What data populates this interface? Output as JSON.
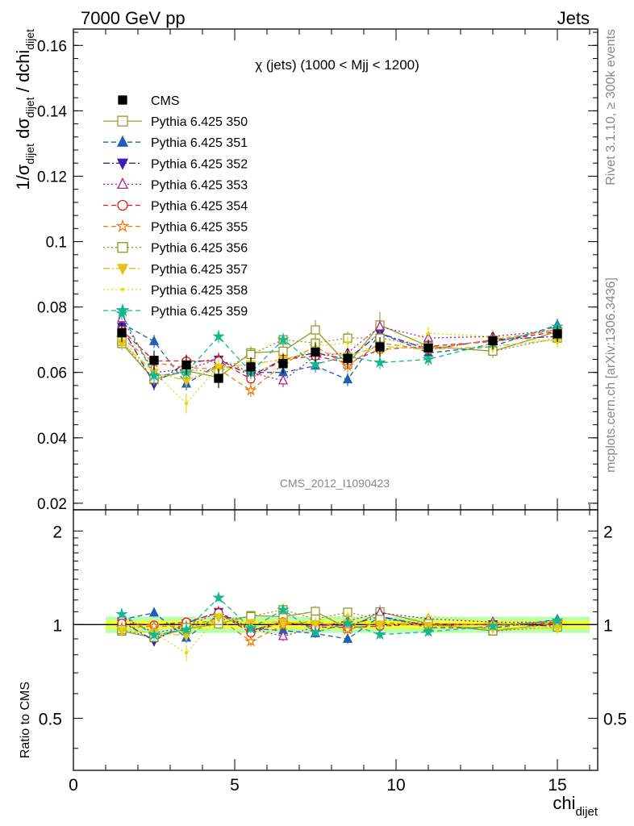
{
  "header": {
    "left": "7000 GeV pp",
    "right": "Jets"
  },
  "side_text": {
    "rivet": "Rivet 3.1.10, ≥ 300k events",
    "mcplots": "mcplots.cern.ch [arXiv:1306.3436]"
  },
  "watermark": "CMS_2012_I1090423",
  "colors": {
    "CMS": "#000000",
    "350": "#999933",
    "351": "#1f5fb4",
    "352": "#3b1fb0",
    "353": "#b0208c",
    "354": "#e41a1c",
    "355": "#f07a10",
    "356": "#8c9a1a",
    "357": "#e6c21a",
    "358": "#d8e000",
    "359": "#14b88c",
    "band_inner": "#f2ff30",
    "band_outer": "#b8ffb0"
  },
  "chart_data": [
    {
      "type": "scatter",
      "title": "χ (jets) (1000 < Mjj < 1200)",
      "ylabel": "1/σ_dijet dσ_dijet / dchi_dijet",
      "xlim": [
        0,
        16.25
      ],
      "ylim": [
        0.018,
        0.165
      ],
      "yticks": [
        0.02,
        0.04,
        0.06,
        0.08,
        0.1,
        0.12,
        0.14,
        0.16
      ],
      "ytick_labels": [
        "0.02",
        "0.04",
        "0.06",
        "0.08",
        "0.1",
        "0.12",
        "0.14",
        "0.16"
      ],
      "x": [
        1.5,
        2.5,
        3.5,
        4.5,
        5.5,
        6.5,
        7.5,
        8.5,
        9.5,
        11,
        13,
        15
      ],
      "series": [
        {
          "name": "CMS",
          "key": "CMS",
          "marker": "filled-square",
          "line": "none",
          "values": [
            0.0722,
            0.0637,
            0.0623,
            0.0582,
            0.0617,
            0.0627,
            0.0662,
            0.0643,
            0.0678,
            0.0675,
            0.0697,
            0.0718
          ],
          "err": [
            0.003,
            0.003,
            0.003,
            0.003,
            0.003,
            0.003,
            0.003,
            0.003,
            0.003,
            0.0025,
            0.0025,
            0.0025
          ]
        },
        {
          "name": "Pythia 6.425 350",
          "key": "350",
          "marker": "open-square",
          "line": "solid",
          "values": [
            0.0688,
            0.0578,
            0.0605,
            0.0585,
            0.066,
            0.0665,
            0.073,
            0.0625,
            0.0745,
            0.068,
            0.0665,
            0.0725
          ],
          "err": [
            0.002,
            0.002,
            0.002,
            0.002,
            0.002,
            0.002,
            0.003,
            0.002,
            0.004,
            0.002,
            0.002,
            0.002
          ]
        },
        {
          "name": "Pythia 6.425 351",
          "key": "351",
          "marker": "filled-triangle-up",
          "line": "dashed",
          "values": [
            0.075,
            0.0695,
            0.0565,
            0.0625,
            0.06,
            0.06,
            0.062,
            0.0578,
            0.072,
            0.066,
            0.068,
            0.0745
          ],
          "err": [
            0.002,
            0.002,
            0.002,
            0.002,
            0.002,
            0.002,
            0.002,
            0.002,
            0.002,
            0.002,
            0.002,
            0.002
          ]
        },
        {
          "name": "Pythia 6.425 352",
          "key": "352",
          "marker": "filled-triangle-down",
          "line": "dashdot",
          "values": [
            0.074,
            0.0565,
            0.063,
            0.064,
            0.059,
            0.064,
            0.066,
            0.064,
            0.072,
            0.067,
            0.07,
            0.071
          ],
          "err": [
            0.002,
            0.002,
            0.002,
            0.002,
            0.002,
            0.002,
            0.002,
            0.002,
            0.002,
            0.002,
            0.002,
            0.002
          ]
        },
        {
          "name": "Pythia 6.425 353",
          "key": "353",
          "marker": "open-triangle-up",
          "line": "dotted",
          "values": [
            0.0765,
            0.06,
            0.061,
            0.064,
            0.06,
            0.0575,
            0.065,
            0.066,
            0.074,
            0.0705,
            0.071,
            0.073
          ],
          "err": [
            0.002,
            0.002,
            0.002,
            0.002,
            0.002,
            0.002,
            0.002,
            0.002,
            0.002,
            0.002,
            0.002,
            0.002
          ]
        },
        {
          "name": "Pythia 6.425 354",
          "key": "354",
          "marker": "open-circle",
          "line": "dashed",
          "values": [
            0.073,
            0.0635,
            0.0635,
            0.0635,
            0.058,
            0.064,
            0.065,
            0.063,
            0.067,
            0.068,
            0.0695,
            0.0725
          ],
          "err": [
            0.002,
            0.002,
            0.002,
            0.002,
            0.002,
            0.002,
            0.002,
            0.002,
            0.002,
            0.002,
            0.002,
            0.002
          ]
        },
        {
          "name": "Pythia 6.425 355",
          "key": "355",
          "marker": "open-star",
          "line": "dashed",
          "values": [
            0.0705,
            0.063,
            0.0615,
            0.061,
            0.0545,
            0.0625,
            0.068,
            0.062,
            0.069,
            0.067,
            0.07,
            0.073
          ],
          "err": [
            0.002,
            0.002,
            0.002,
            0.002,
            0.002,
            0.002,
            0.002,
            0.002,
            0.002,
            0.002,
            0.002,
            0.002
          ]
        },
        {
          "name": "Pythia 6.425 356",
          "key": "356",
          "marker": "open-square",
          "line": "dotted",
          "values": [
            0.0695,
            0.058,
            0.061,
            0.06,
            0.0655,
            0.07,
            0.069,
            0.0705,
            0.0705,
            0.068,
            0.0665,
            0.0705
          ],
          "err": [
            0.002,
            0.002,
            0.002,
            0.002,
            0.002,
            0.002,
            0.002,
            0.002,
            0.002,
            0.002,
            0.002,
            0.002
          ]
        },
        {
          "name": "Pythia 6.425 357",
          "key": "357",
          "marker": "filled-triangle-down",
          "line": "dashdot",
          "values": [
            0.069,
            0.06,
            0.0575,
            0.0615,
            0.0625,
            0.064,
            0.0665,
            0.065,
            0.068,
            0.067,
            0.068,
            0.07
          ],
          "err": [
            0.002,
            0.002,
            0.002,
            0.002,
            0.002,
            0.002,
            0.002,
            0.002,
            0.002,
            0.002,
            0.002,
            0.002
          ]
        },
        {
          "name": "Pythia 6.425 358",
          "key": "358",
          "marker": "dot",
          "line": "dotted",
          "values": [
            0.07,
            0.06,
            0.0505,
            0.062,
            0.06,
            0.063,
            0.068,
            0.069,
            0.066,
            0.072,
            0.071,
            0.0695
          ],
          "err": [
            0.002,
            0.002,
            0.003,
            0.002,
            0.002,
            0.002,
            0.002,
            0.002,
            0.002,
            0.002,
            0.002,
            0.002
          ]
        },
        {
          "name": "Pythia 6.425 359",
          "key": "359",
          "marker": "filled-star",
          "line": "dashed",
          "values": [
            0.078,
            0.059,
            0.06,
            0.071,
            0.06,
            0.07,
            0.0625,
            0.065,
            0.063,
            0.064,
            0.069,
            0.074
          ],
          "err": [
            0.002,
            0.002,
            0.002,
            0.002,
            0.002,
            0.002,
            0.002,
            0.002,
            0.002,
            0.002,
            0.002,
            0.002
          ]
        }
      ],
      "legend_position": "upper-left"
    },
    {
      "type": "scatter",
      "title": "",
      "ylabel": "Ratio to CMS",
      "xlabel": "chi_dijet",
      "xlim": [
        0,
        16.25
      ],
      "ylim": [
        0.34,
        2.34
      ],
      "ylog": true,
      "yticks": [
        0.5,
        1,
        2
      ],
      "ytick_labels": [
        "0.5",
        "1",
        "2"
      ],
      "xticks": [
        0,
        5,
        10,
        15
      ],
      "xtick_labels": [
        "0",
        "5",
        "10",
        "15"
      ],
      "reference_line": 1,
      "band": {
        "x_range": [
          1,
          16
        ],
        "inner": 0.03,
        "outer": 0.06
      }
    }
  ]
}
